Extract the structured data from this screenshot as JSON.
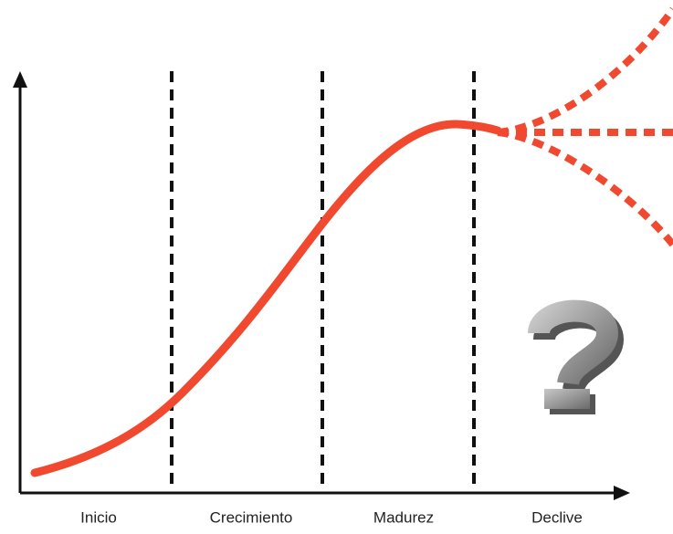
{
  "stages": [
    {
      "label": "Inicio"
    },
    {
      "label": "Crecimiento"
    },
    {
      "label": "Madurez"
    },
    {
      "label": "Declive"
    }
  ]
}
